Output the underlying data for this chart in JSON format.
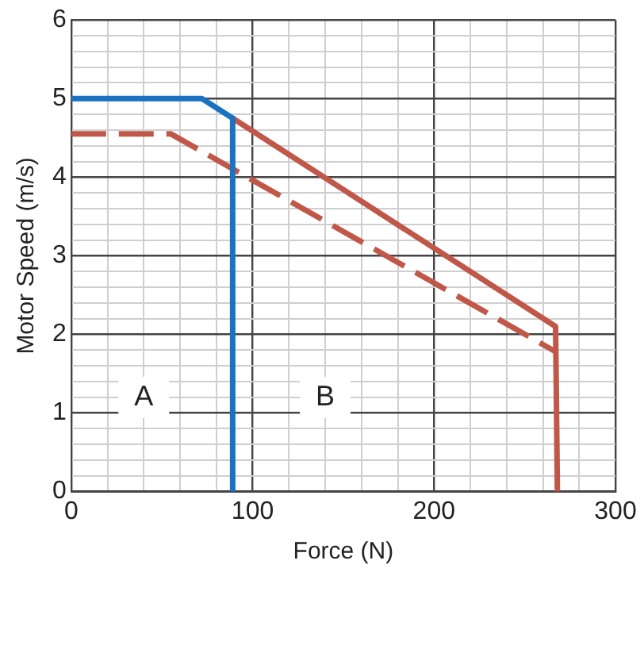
{
  "chart_data": {
    "type": "line",
    "xlabel": "Force (N)",
    "ylabel": "Motor Speed (m/s)",
    "series": [
      {
        "color": "#1a72c0",
        "x": [
          0,
          72,
          89,
          89
        ],
        "values": [
          5,
          5,
          4.75,
          0
        ],
        "line_style": "solid"
      },
      {
        "color": "#c0584a",
        "x": [
          89,
          267,
          268
        ],
        "values": [
          4.75,
          2.1,
          0
        ],
        "line_style": "solid"
      },
      {
        "color": "#c0584a",
        "x": [
          0,
          55,
          267
        ],
        "values": [
          4.55,
          4.55,
          1.78
        ],
        "line_style": "dashed"
      }
    ],
    "xlim": [
      0,
      300
    ],
    "ylim": [
      0,
      6
    ],
    "xticks": [
      0,
      {
        "value": 20,
        "label": null
      },
      {
        "value": 40,
        "label": null
      },
      {
        "value": 60,
        "label": null
      },
      {
        "value": 80,
        "label": null
      },
      100,
      {
        "value": 120,
        "label": null
      },
      {
        "value": 140,
        "label": null
      },
      {
        "value": 160,
        "label": null
      },
      {
        "value": 180,
        "label": null
      },
      200,
      {
        "value": 220,
        "label": null
      },
      {
        "value": 240,
        "label": null
      },
      {
        "value": 260,
        "label": null
      },
      {
        "value": 280,
        "label": null
      },
      300
    ],
    "yticks": [
      0,
      {
        "value": 0.2,
        "label": null
      },
      {
        "value": 0.4,
        "label": null
      },
      {
        "value": 0.6,
        "label": null
      },
      {
        "value": 0.8,
        "label": null
      },
      1,
      {
        "value": 1.2,
        "label": null
      },
      {
        "value": 1.4,
        "label": null
      },
      {
        "value": 1.6,
        "label": null
      },
      {
        "value": 1.8,
        "label": null
      },
      2,
      {
        "value": 2.2,
        "label": null
      },
      {
        "value": 2.4,
        "label": null
      },
      {
        "value": 2.6,
        "label": null
      },
      {
        "value": 2.8,
        "label": null
      },
      3,
      {
        "value": 3.2,
        "label": null
      },
      {
        "value": 3.4,
        "label": null
      },
      {
        "value": 3.6,
        "label": null
      },
      {
        "value": 3.8,
        "label": null
      },
      4,
      {
        "value": 4.2,
        "label": null
      },
      {
        "value": 4.4,
        "label": null
      },
      {
        "value": 4.6,
        "label": null
      },
      {
        "value": 4.8,
        "label": null
      },
      5,
      {
        "value": 5.2,
        "label": null
      },
      {
        "value": 5.4,
        "label": null
      },
      {
        "value": 5.6,
        "label": null
      },
      {
        "value": 5.8,
        "label": null
      },
      6
    ],
    "grid": true,
    "legend": false,
    "marker": "none",
    "annotations": [
      {
        "text": "A",
        "x": 40,
        "y": 1.2
      },
      {
        "text": "B",
        "x": 140,
        "y": 1.2
      }
    ]
  }
}
